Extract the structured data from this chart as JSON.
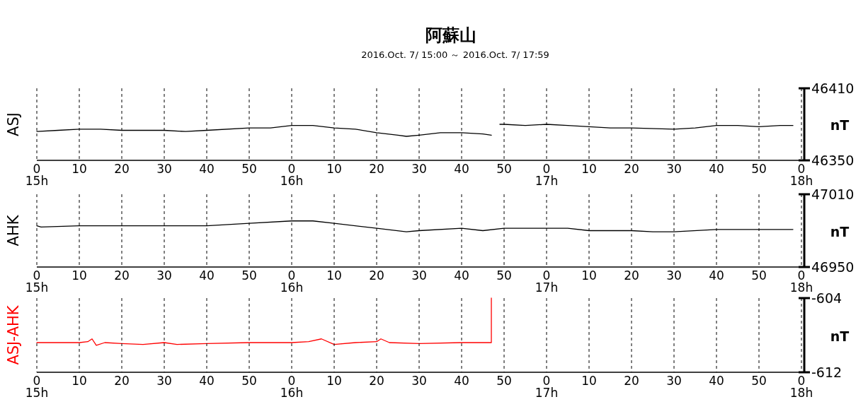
{
  "chart_data": [
    {
      "type": "line",
      "title": "阿蘇山",
      "subtitle": "2016.Oct. 7/ 15:00 ～ 2016.Oct. 7/ 17:59",
      "ylabel": "ASJ",
      "y2label": "nT",
      "grid": "x",
      "line_style": "solid",
      "xlim": [
        "2016-10-07T15:00",
        "2016-10-07T18:00"
      ],
      "xticks": [
        {
          "value": "2016-10-07T15:00",
          "label": "0\n15h"
        },
        {
          "value": "2016-10-07T15:10",
          "label": "10"
        },
        {
          "value": "2016-10-07T15:20",
          "label": "20"
        },
        {
          "value": "2016-10-07T15:30",
          "label": "30"
        },
        {
          "value": "2016-10-07T15:40",
          "label": "40"
        },
        {
          "value": "2016-10-07T15:50",
          "label": "50"
        },
        {
          "value": "2016-10-07T16:00",
          "label": "0\n16h"
        },
        {
          "value": "2016-10-07T16:10",
          "label": "10"
        },
        {
          "value": "2016-10-07T16:20",
          "label": "20"
        },
        {
          "value": "2016-10-07T16:30",
          "label": "30"
        },
        {
          "value": "2016-10-07T16:40",
          "label": "40"
        },
        {
          "value": "2016-10-07T16:50",
          "label": "50"
        },
        {
          "value": "2016-10-07T17:00",
          "label": "0\n17h"
        },
        {
          "value": "2016-10-07T17:10",
          "label": "10"
        },
        {
          "value": "2016-10-07T17:20",
          "label": "20"
        },
        {
          "value": "2016-10-07T17:30",
          "label": "30"
        },
        {
          "value": "2016-10-07T17:40",
          "label": "40"
        },
        {
          "value": "2016-10-07T17:50",
          "label": "50"
        },
        {
          "value": "2016-10-07T18:00",
          "label": "0\n18h"
        }
      ],
      "y2lim": [
        46350,
        46410
      ],
      "y2ticks": [
        46350,
        46410
      ],
      "series": [
        {
          "color": "#000000",
          "axis": "y2",
          "x": [
            "2016-10-07T15:00",
            "2016-10-07T15:05",
            "2016-10-07T15:10",
            "2016-10-07T15:15",
            "2016-10-07T15:20",
            "2016-10-07T15:30",
            "2016-10-07T15:35",
            "2016-10-07T15:40",
            "2016-10-07T15:50",
            "2016-10-07T15:55",
            "2016-10-07T16:00",
            "2016-10-07T16:05",
            "2016-10-07T16:10",
            "2016-10-07T16:15",
            "2016-10-07T16:20",
            "2016-10-07T16:25",
            "2016-10-07T16:27",
            "2016-10-07T16:30",
            "2016-10-07T16:35",
            "2016-10-07T16:40",
            "2016-10-07T16:45",
            "2016-10-07T16:47"
          ],
          "values": [
            46374,
            46375,
            46376,
            46376,
            46375,
            46375,
            46374,
            46375,
            46377,
            46377,
            46379,
            46379,
            46377,
            46376,
            46373,
            46371,
            46370,
            46371,
            46373,
            46373,
            46372,
            46371
          ]
        },
        {
          "color": "#000000",
          "axis": "y2",
          "x": [
            "2016-10-07T16:49",
            "2016-10-07T16:50",
            "2016-10-07T16:55",
            "2016-10-07T17:00",
            "2016-10-07T17:05",
            "2016-10-07T17:10",
            "2016-10-07T17:15",
            "2016-10-07T17:20",
            "2016-10-07T17:30",
            "2016-10-07T17:35",
            "2016-10-07T17:40",
            "2016-10-07T17:45",
            "2016-10-07T17:50",
            "2016-10-07T17:55",
            "2016-10-07T17:58"
          ],
          "values": [
            46380,
            46380,
            46379,
            46380,
            46379,
            46378,
            46377,
            46377,
            46376,
            46377,
            46379,
            46379,
            46378,
            46379,
            46379
          ]
        }
      ]
    },
    {
      "type": "line",
      "ylabel": "AHK",
      "y2label": "nT",
      "grid": "x",
      "line_style": "solid",
      "xlim": [
        "2016-10-07T15:00",
        "2016-10-07T18:00"
      ],
      "xticks": [
        {
          "value": "2016-10-07T15:00",
          "label": "0\n15h"
        },
        {
          "value": "2016-10-07T15:10",
          "label": "10"
        },
        {
          "value": "2016-10-07T15:20",
          "label": "20"
        },
        {
          "value": "2016-10-07T15:30",
          "label": "30"
        },
        {
          "value": "2016-10-07T15:40",
          "label": "40"
        },
        {
          "value": "2016-10-07T15:50",
          "label": "50"
        },
        {
          "value": "2016-10-07T16:00",
          "label": "0\n16h"
        },
        {
          "value": "2016-10-07T16:10",
          "label": "10"
        },
        {
          "value": "2016-10-07T16:20",
          "label": "20"
        },
        {
          "value": "2016-10-07T16:30",
          "label": "30"
        },
        {
          "value": "2016-10-07T16:40",
          "label": "40"
        },
        {
          "value": "2016-10-07T16:50",
          "label": "50"
        },
        {
          "value": "2016-10-07T17:00",
          "label": "0\n17h"
        },
        {
          "value": "2016-10-07T17:10",
          "label": "10"
        },
        {
          "value": "2016-10-07T17:20",
          "label": "20"
        },
        {
          "value": "2016-10-07T17:30",
          "label": "30"
        },
        {
          "value": "2016-10-07T17:40",
          "label": "40"
        },
        {
          "value": "2016-10-07T17:50",
          "label": "50"
        },
        {
          "value": "2016-10-07T18:00",
          "label": "0\n18h"
        }
      ],
      "y2lim": [
        46950,
        47010
      ],
      "y2ticks": [
        46950,
        47010
      ],
      "series": [
        {
          "color": "#000000",
          "axis": "y2",
          "x": [
            "2016-10-07T15:00",
            "2016-10-07T15:01",
            "2016-10-07T15:10",
            "2016-10-07T15:20",
            "2016-10-07T15:30",
            "2016-10-07T15:40",
            "2016-10-07T15:50",
            "2016-10-07T16:00",
            "2016-10-07T16:05",
            "2016-10-07T16:10",
            "2016-10-07T16:20",
            "2016-10-07T16:27",
            "2016-10-07T16:30",
            "2016-10-07T16:40",
            "2016-10-07T16:45",
            "2016-10-07T16:50",
            "2016-10-07T17:00",
            "2016-10-07T17:05",
            "2016-10-07T17:10",
            "2016-10-07T17:20",
            "2016-10-07T17:25",
            "2016-10-07T17:30",
            "2016-10-07T17:40",
            "2016-10-07T17:58"
          ],
          "values": [
            46984,
            46983,
            46984,
            46984,
            46984,
            46984,
            46986,
            46988,
            46988,
            46986,
            46982,
            46979,
            46980,
            46982,
            46980,
            46982,
            46982,
            46982,
            46980,
            46980,
            46979,
            46979,
            46981,
            46981
          ]
        }
      ]
    },
    {
      "type": "line",
      "ylabel": "ASJ-AHK",
      "y2label": "nT",
      "grid": "x",
      "line_style": "solid",
      "xlim": [
        "2016-10-07T15:00",
        "2016-10-07T18:00"
      ],
      "xticks": [
        {
          "value": "2016-10-07T15:00",
          "label": "0\n15h"
        },
        {
          "value": "2016-10-07T15:10",
          "label": "10"
        },
        {
          "value": "2016-10-07T15:20",
          "label": "20"
        },
        {
          "value": "2016-10-07T15:30",
          "label": "30"
        },
        {
          "value": "2016-10-07T15:40",
          "label": "40"
        },
        {
          "value": "2016-10-07T15:50",
          "label": "50"
        },
        {
          "value": "2016-10-07T16:00",
          "label": "0\n16h"
        },
        {
          "value": "2016-10-07T16:10",
          "label": "10"
        },
        {
          "value": "2016-10-07T16:20",
          "label": "20"
        },
        {
          "value": "2016-10-07T16:30",
          "label": "30"
        },
        {
          "value": "2016-10-07T16:40",
          "label": "40"
        },
        {
          "value": "2016-10-07T16:50",
          "label": "50"
        },
        {
          "value": "2016-10-07T17:00",
          "label": "0\n17h"
        },
        {
          "value": "2016-10-07T17:10",
          "label": "10"
        },
        {
          "value": "2016-10-07T17:20",
          "label": "20"
        },
        {
          "value": "2016-10-07T17:30",
          "label": "30"
        },
        {
          "value": "2016-10-07T17:40",
          "label": "40"
        },
        {
          "value": "2016-10-07T17:50",
          "label": "50"
        },
        {
          "value": "2016-10-07T18:00",
          "label": "0\n18h"
        }
      ],
      "y2lim": [
        -612,
        -604
      ],
      "y2ticks": [
        -612,
        -604
      ],
      "series": [
        {
          "color": "#ff0000",
          "axis": "y2",
          "x": [
            "2016-10-07T15:00",
            "2016-10-07T15:10",
            "2016-10-07T15:12",
            "2016-10-07T15:13",
            "2016-10-07T15:14",
            "2016-10-07T15:16",
            "2016-10-07T15:20",
            "2016-10-07T15:25",
            "2016-10-07T15:30",
            "2016-10-07T15:33",
            "2016-10-07T15:40",
            "2016-10-07T15:50",
            "2016-10-07T16:00",
            "2016-10-07T16:04",
            "2016-10-07T16:07",
            "2016-10-07T16:10",
            "2016-10-07T16:15",
            "2016-10-07T16:20",
            "2016-10-07T16:21",
            "2016-10-07T16:23",
            "2016-10-07T16:30",
            "2016-10-07T16:40",
            "2016-10-07T16:47",
            "2016-10-07T16:47"
          ],
          "values": [
            -608.8,
            -608.8,
            -608.7,
            -608.4,
            -609.1,
            -608.8,
            -608.9,
            -609.0,
            -608.8,
            -609.0,
            -608.9,
            -608.8,
            -608.8,
            -608.7,
            -608.4,
            -609.0,
            -608.8,
            -608.7,
            -608.4,
            -608.8,
            -608.9,
            -608.8,
            -608.8,
            -604
          ]
        }
      ]
    }
  ]
}
